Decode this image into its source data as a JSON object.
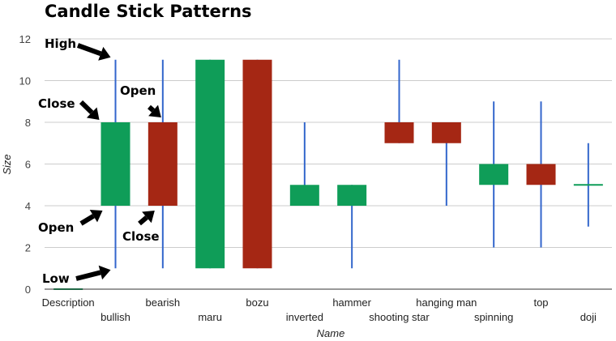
{
  "chart_data": {
    "type": "candlestick",
    "title": "Candle Stick Patterns",
    "xlabel": "Name",
    "ylabel": "Size",
    "ylim": [
      0,
      12
    ],
    "y_ticks": [
      0,
      2,
      4,
      6,
      8,
      10,
      12
    ],
    "grid": true,
    "legend": "none",
    "colors": {
      "rising": "#0f9d58",
      "falling": "#a52714",
      "wick": "#3366cc",
      "grid": "#cccccc",
      "axis": "#333333"
    },
    "categories": [
      "Description",
      "bullish",
      "bearish",
      "maru",
      "bozu",
      "inverted",
      "hammer",
      "shooting star",
      "hanging man",
      "spinning",
      "top",
      "doji"
    ],
    "candles": [
      {
        "name": "Description",
        "low": 0,
        "open": 0,
        "close": 0,
        "high": 0
      },
      {
        "name": "bullish",
        "low": 1,
        "open": 4,
        "close": 8,
        "high": 11
      },
      {
        "name": "bearish",
        "low": 1,
        "open": 8,
        "close": 4,
        "high": 11
      },
      {
        "name": "maru",
        "low": 1,
        "open": 1,
        "close": 11,
        "high": 11
      },
      {
        "name": "bozu",
        "low": 1,
        "open": 11,
        "close": 1,
        "high": 11
      },
      {
        "name": "inverted",
        "low": 4,
        "open": 4,
        "close": 5,
        "high": 8
      },
      {
        "name": "hammer",
        "low": 1,
        "open": 4,
        "close": 5,
        "high": 5
      },
      {
        "name": "shooting star",
        "low": 7,
        "open": 8,
        "close": 7,
        "high": 11
      },
      {
        "name": "hanging man",
        "low": 4,
        "open": 8,
        "close": 7,
        "high": 8
      },
      {
        "name": "spinning",
        "low": 2,
        "open": 5,
        "close": 6,
        "high": 9
      },
      {
        "name": "top",
        "low": 2,
        "open": 6,
        "close": 5,
        "high": 9
      },
      {
        "name": "doji",
        "low": 3,
        "open": 5,
        "close": 5,
        "high": 7
      }
    ],
    "annotations": [
      {
        "text": "High",
        "y": 11
      },
      {
        "text": "Close",
        "y": 8
      },
      {
        "text": "Open",
        "y": 8
      },
      {
        "text": "Open",
        "y": 4
      },
      {
        "text": "Close",
        "y": 4
      },
      {
        "text": "Low",
        "y": 1
      }
    ]
  }
}
